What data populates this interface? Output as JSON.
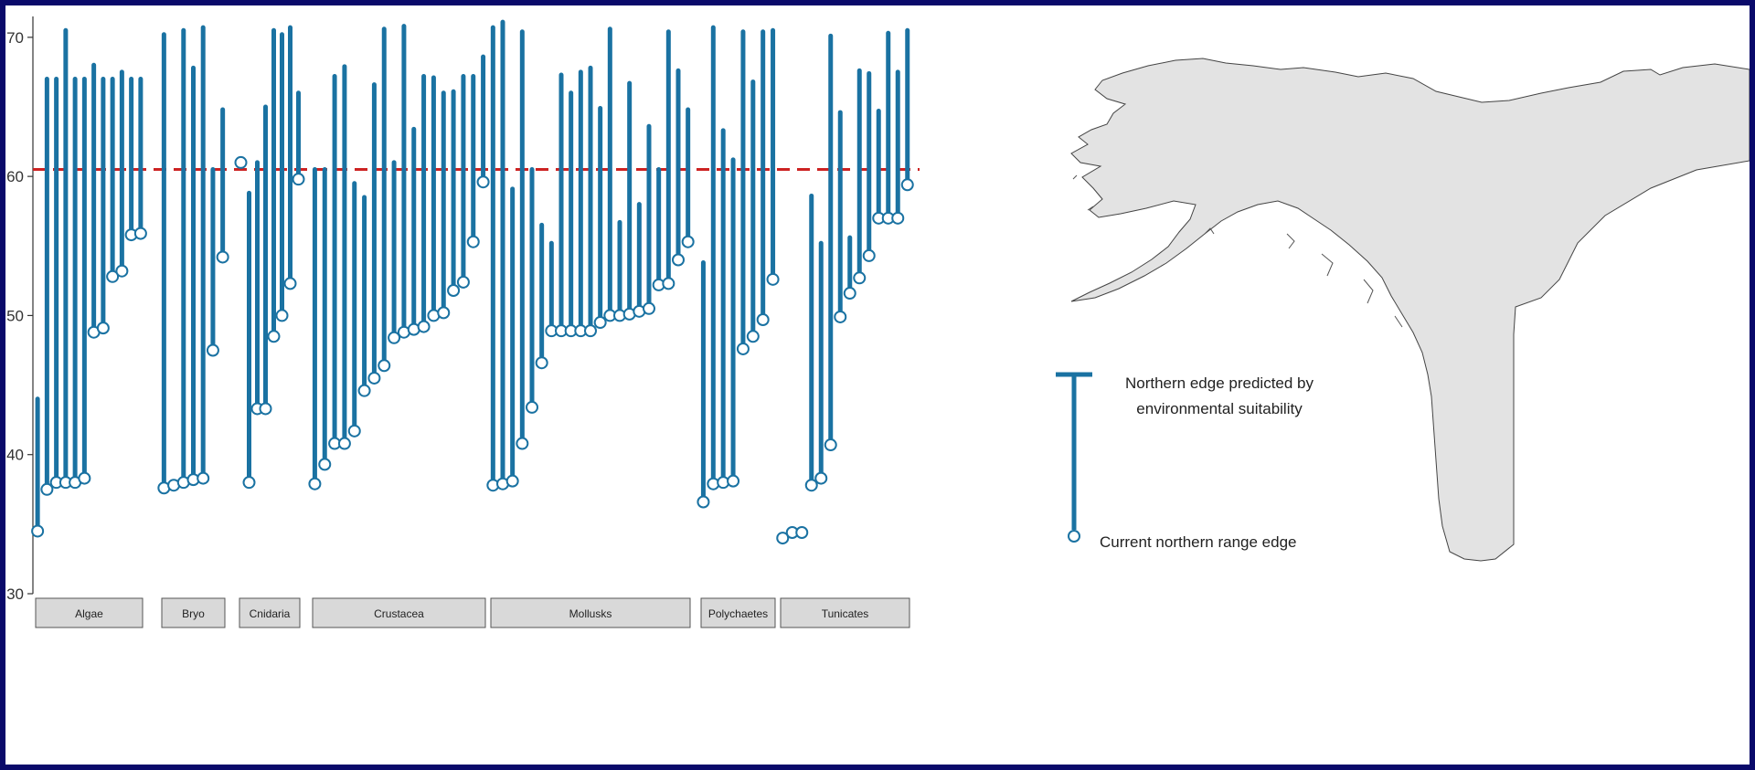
{
  "chart_data": {
    "type": "dumbbell",
    "y_range": [
      30,
      71.5
    ],
    "y_ticks": [
      30,
      40,
      50,
      60,
      70
    ],
    "reference_line": {
      "value": 60.5,
      "style": "dashed",
      "color": "#cc2222"
    },
    "colors": {
      "segment": "#1a72a2",
      "point_fill": "#ffffff",
      "point_stroke": "#1a72a2",
      "facet_fill": "#d9d9d9"
    },
    "groups": [
      {
        "name": "Algae",
        "values": [
          [
            34.5,
            44
          ],
          [
            37.5,
            67
          ],
          [
            38,
            67
          ],
          [
            38,
            70.5
          ],
          [
            38,
            67
          ],
          [
            38.3,
            67
          ],
          [
            48.8,
            68
          ],
          [
            49.1,
            67
          ],
          [
            52.8,
            67
          ],
          [
            53.2,
            67.5
          ],
          [
            55.8,
            67
          ],
          [
            55.9,
            67
          ]
        ]
      },
      {
        "name": "Bryo",
        "values": [
          [
            37.6,
            70.2
          ],
          [
            37.8,
            null
          ],
          [
            38,
            70.5
          ],
          [
            38.2,
            67.8
          ],
          [
            38.3,
            70.7
          ],
          [
            47.5,
            60.5
          ],
          [
            54.2,
            64.8
          ]
        ]
      },
      {
        "name": "Cnidaria",
        "values": [
          [
            61,
            null
          ],
          [
            38,
            58.8
          ],
          [
            43.3,
            61
          ],
          [
            43.3,
            65
          ],
          [
            48.5,
            70.5
          ],
          [
            50,
            70.2
          ],
          [
            52.3,
            70.7
          ],
          [
            59.8,
            66
          ]
        ]
      },
      {
        "name": "Crustacea",
        "values": [
          [
            37.9,
            60.5
          ],
          [
            39.3,
            60.5
          ],
          [
            40.8,
            67.2
          ],
          [
            40.8,
            67.9
          ],
          [
            41.7,
            59.5
          ],
          [
            44.6,
            58.5
          ],
          [
            45.5,
            66.6
          ],
          [
            46.4,
            70.6
          ],
          [
            48.4,
            61
          ],
          [
            48.8,
            70.8
          ],
          [
            49,
            63.4
          ],
          [
            49.2,
            67.2
          ],
          [
            50,
            67.1
          ],
          [
            50.2,
            66
          ],
          [
            51.8,
            66.1
          ],
          [
            52.4,
            67.2
          ],
          [
            55.3,
            67.2
          ],
          [
            59.6,
            68.6
          ]
        ]
      },
      {
        "name": "Mollusks",
        "values": [
          [
            37.8,
            70.7
          ],
          [
            37.9,
            71.1
          ],
          [
            38.1,
            59.1
          ],
          [
            40.8,
            70.4
          ],
          [
            43.4,
            60.5
          ],
          [
            46.6,
            56.5
          ],
          [
            48.9,
            55.2
          ],
          [
            48.9,
            67.3
          ],
          [
            48.9,
            66
          ],
          [
            48.9,
            67.5
          ],
          [
            48.9,
            67.8
          ],
          [
            49.5,
            64.9
          ],
          [
            50,
            70.6
          ],
          [
            50,
            56.7
          ],
          [
            50.1,
            66.7
          ],
          [
            50.3,
            58
          ],
          [
            50.5,
            63.6
          ],
          [
            52.2,
            60.5
          ],
          [
            52.3,
            70.4
          ],
          [
            54,
            67.6
          ],
          [
            55.3,
            64.8
          ]
        ]
      },
      {
        "name": "Polychaetes",
        "values": [
          [
            36.6,
            53.8
          ],
          [
            37.9,
            70.7
          ],
          [
            38,
            63.3
          ],
          [
            38.1,
            61.2
          ],
          [
            47.6,
            70.4
          ],
          [
            48.5,
            66.8
          ],
          [
            49.7,
            70.4
          ],
          [
            52.6,
            70.5
          ]
        ]
      },
      {
        "name": "Tunicates",
        "values": [
          [
            34,
            null
          ],
          [
            34.4,
            null
          ],
          [
            34.4,
            null
          ],
          [
            37.8,
            58.6
          ],
          [
            38.3,
            55.2
          ],
          [
            40.7,
            70.1
          ],
          [
            49.9,
            64.6
          ],
          [
            51.6,
            55.6
          ],
          [
            52.7,
            67.6
          ],
          [
            54.3,
            67.4
          ],
          [
            57,
            64.7
          ],
          [
            57,
            70.3
          ],
          [
            57,
            67.5
          ],
          [
            59.4,
            70.5
          ]
        ]
      }
    ]
  },
  "legend": {
    "upper_label_line1": "Northern edge predicted by",
    "upper_label_line2": "environmental suitability",
    "lower_label": "Current northern range edge"
  }
}
